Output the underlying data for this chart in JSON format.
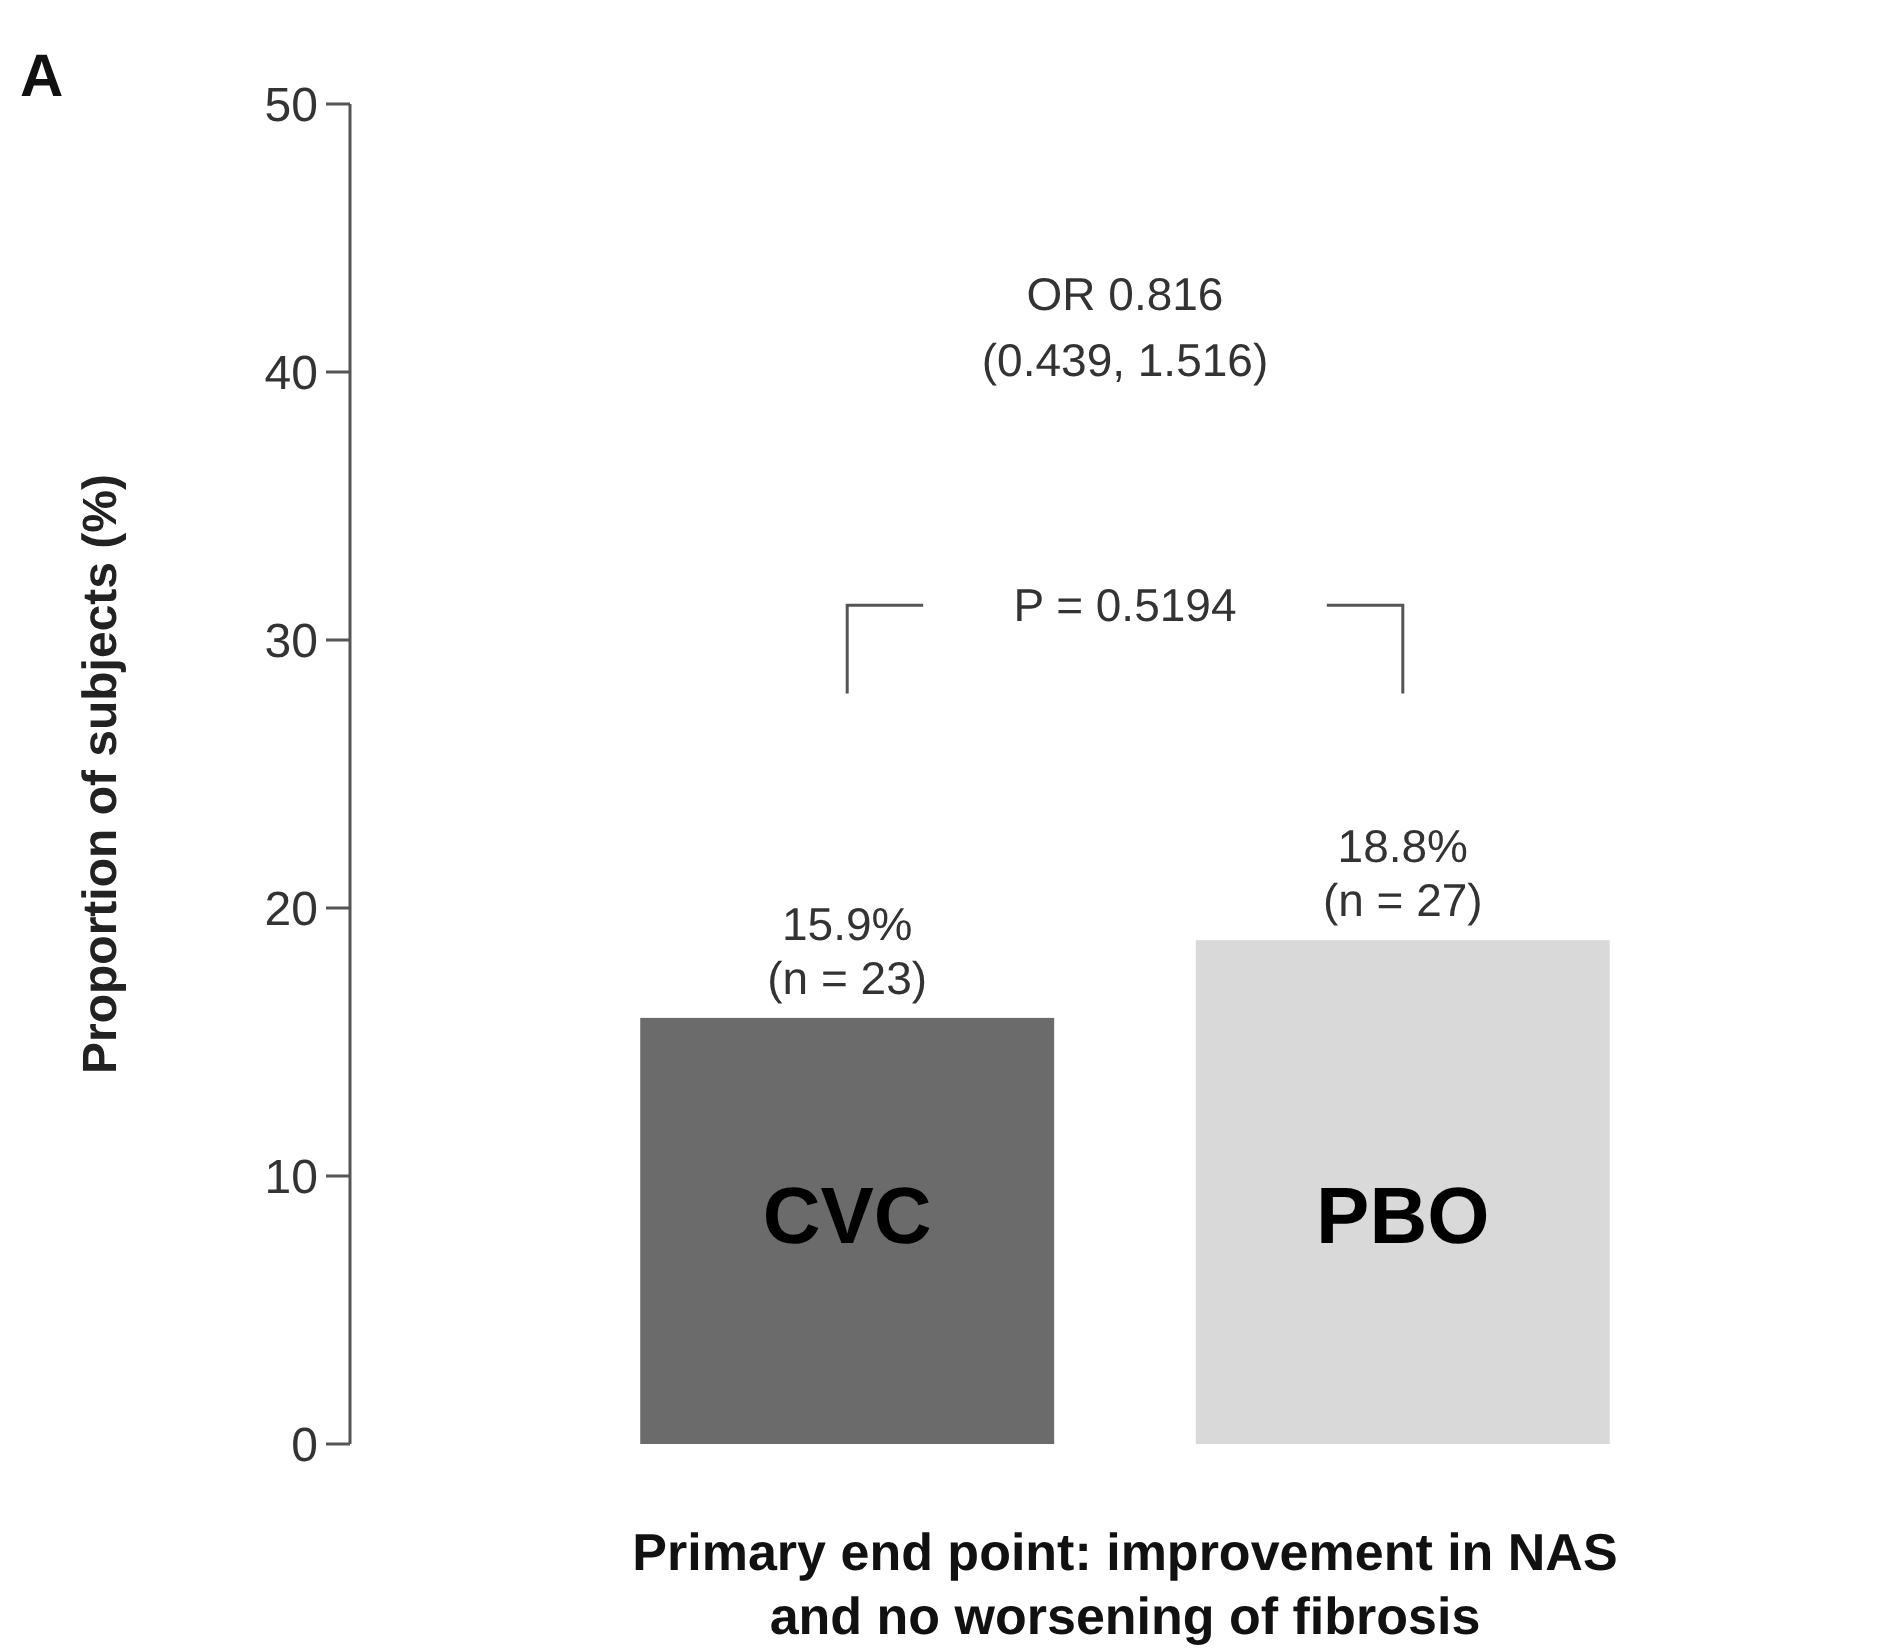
{
  "chart_data": {
    "type": "bar",
    "categories": [
      "CVC",
      "PBO"
    ],
    "values": [
      15.9,
      18.8
    ],
    "colors": [
      "#6b6b6b",
      "#d9d9d9"
    ],
    "value_labels": [
      "15.9%\n(n = 23)",
      "18.8%\n(n = 27)"
    ],
    "ylabel": "Proportion of subjects (%)",
    "xlabel": "Primary end point: improvement in NAS\nand no worsening of fibrosis",
    "ylim": [
      0,
      50
    ],
    "yticks": [
      0,
      10,
      20,
      30,
      40,
      50
    ],
    "annotations": [
      "A",
      "OR 0.816\n(0.439, 1.516)",
      "P = 0.5194"
    ],
    "tick_labels": "y"
  }
}
